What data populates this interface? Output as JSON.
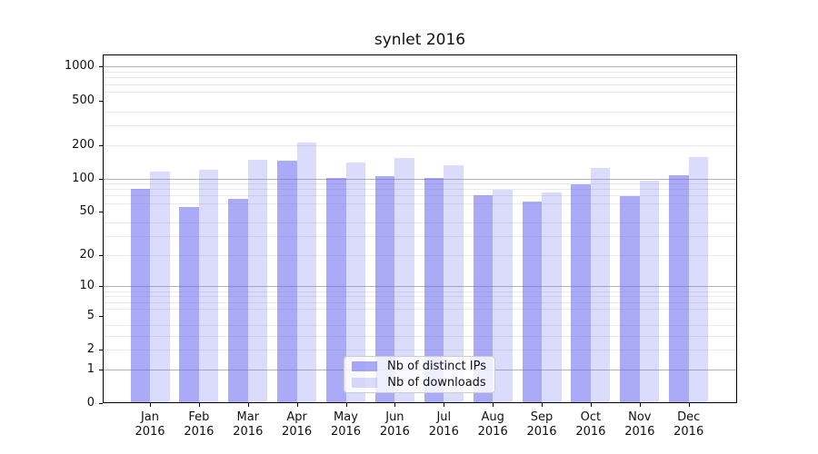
{
  "chart_data": {
    "type": "bar",
    "title": "synlet 2016",
    "categories": [
      "Jan",
      "Feb",
      "Mar",
      "Apr",
      "May",
      "Jun",
      "Jul",
      "Aug",
      "Sep",
      "Oct",
      "Nov",
      "Dec"
    ],
    "year_label": "2016",
    "series": [
      {
        "id": "distinct-ips",
        "name": "Nb of distinct IPs",
        "color": "#aaaaf7",
        "rgba": "rgba(100,100,240,0.55)",
        "values": [
          80,
          55,
          66,
          145,
          101,
          104,
          101,
          70,
          62,
          88,
          69,
          106
        ]
      },
      {
        "id": "downloads",
        "name": "Nb of downloads",
        "color": "#dbdbf9",
        "rgba": "rgba(110,110,240,0.25)",
        "values": [
          115,
          120,
          147,
          210,
          138,
          152,
          131,
          79,
          74,
          125,
          95,
          155
        ]
      }
    ],
    "y_axis": {
      "scale": "log10(value+1)",
      "ticks": [
        0,
        1,
        2,
        5,
        10,
        20,
        50,
        100,
        200,
        500,
        1000
      ],
      "major_gridlines": [
        1,
        10,
        100,
        1000
      ],
      "minor_gridlines": [
        2,
        3,
        4,
        6,
        7,
        8,
        9,
        20,
        30,
        40,
        60,
        70,
        80,
        90,
        200,
        300,
        400,
        600,
        700,
        800,
        900
      ],
      "ylim": [
        0,
        1270
      ],
      "major_grid_color": "#b3b3b3",
      "minor_grid_color": "#e9e9e9"
    },
    "legend_position": "lower center",
    "grid": true
  }
}
